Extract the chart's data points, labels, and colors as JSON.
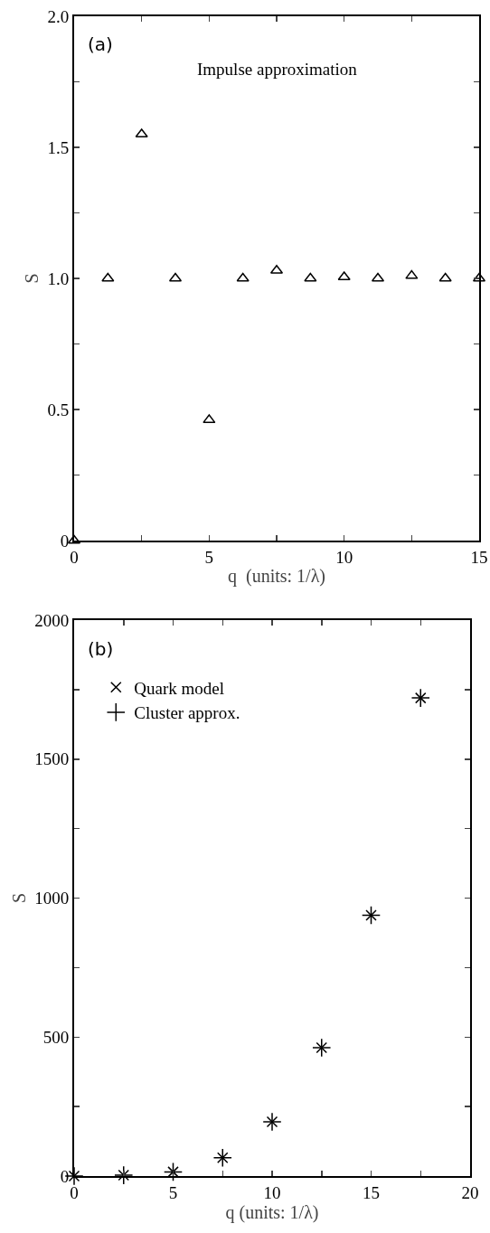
{
  "chart_data": [
    {
      "type": "scatter",
      "xlabel": "q  (units: 1/λ)",
      "ylabel": "S",
      "annotations": [
        "(a)",
        "Impulse approximation"
      ],
      "x": [
        0,
        1.25,
        2.5,
        3.75,
        5,
        6.25,
        7.5,
        8.75,
        10,
        11.25,
        12.5,
        13.75,
        15
      ],
      "series": [
        {
          "color": "#000000",
          "marker": "triangle",
          "values": [
            0,
            1.0,
            1.55,
            1.0,
            0.46,
            1.0,
            1.03,
            1.0,
            1.005,
            1.0,
            1.01,
            1.0,
            1.0
          ]
        }
      ],
      "xlim": [
        0,
        15
      ],
      "xticks": [
        0,
        {
          "value": 2.5,
          "label": null
        },
        5,
        {
          "value": 7.5,
          "label": null
        },
        10,
        {
          "value": 12.5,
          "label": null
        },
        15
      ],
      "ylim": [
        0,
        2
      ],
      "yticks": [
        {
          "value": 0,
          "label": "0"
        },
        {
          "value": 0.25,
          "label": null
        },
        {
          "value": 0.5,
          "label": "0.5"
        },
        {
          "value": 0.75,
          "label": null
        },
        {
          "value": 1,
          "label": "1.0"
        },
        {
          "value": 1.25,
          "label": null
        },
        {
          "value": 1.5,
          "label": "1.5"
        },
        {
          "value": 1.75,
          "label": null
        },
        {
          "value": 2,
          "label": "2.0"
        }
      ],
      "grid": false,
      "legend": false
    },
    {
      "type": "scatter",
      "xlabel": "q (units: 1/λ)",
      "ylabel": "S",
      "annotations": [
        "(b)"
      ],
      "x": [
        0,
        2.5,
        5,
        7.5,
        10,
        12.5,
        15,
        17.5
      ],
      "series": [
        {
          "name": "Quark model",
          "color": "#000000",
          "marker": "x",
          "values": [
            0,
            3,
            15,
            66,
            195,
            462,
            938,
            1720
          ]
        },
        {
          "name": "Cluster approx.",
          "color": "#000000",
          "marker": "cross",
          "values": [
            0,
            3,
            15,
            66,
            195,
            462,
            938,
            1720
          ]
        }
      ],
      "xlim": [
        0,
        20
      ],
      "xticks": [
        0,
        {
          "value": 2.5,
          "label": null
        },
        5,
        {
          "value": 7.5,
          "label": null
        },
        10,
        {
          "value": 12.5,
          "label": null
        },
        15,
        {
          "value": 17.5,
          "label": null
        },
        20
      ],
      "ylim": [
        0,
        2000
      ],
      "yticks": [
        0,
        {
          "value": 250,
          "label": null
        },
        500,
        {
          "value": 750,
          "label": null
        },
        1000,
        {
          "value": 1250,
          "label": null
        },
        1500,
        {
          "value": 1750,
          "label": null
        },
        2000
      ],
      "grid": false,
      "legend": "top left"
    }
  ]
}
